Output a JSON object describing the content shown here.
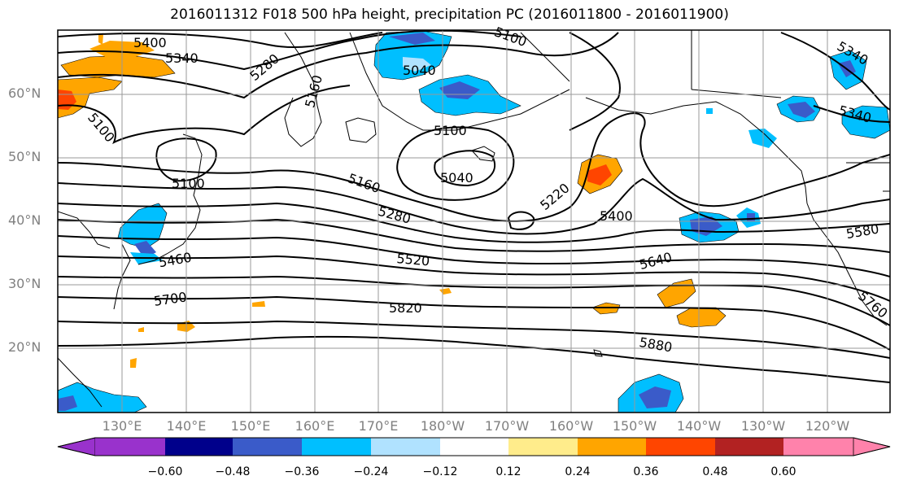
{
  "title": "2016011312 F018 500 hPa height, precipitation PC (2016011800 - 2016011900)",
  "lat_labels": [
    "60°N",
    "50°N",
    "40°N",
    "30°N",
    "20°N"
  ],
  "lon_labels": [
    "130°E",
    "140°E",
    "150°E",
    "160°E",
    "170°E",
    "180°W",
    "170°W",
    "160°W",
    "150°W",
    "140°W",
    "130°W",
    "120°W"
  ],
  "contour_labels": [
    "5400",
    "5340",
    "5280",
    "5100",
    "5160",
    "5040",
    "5100",
    "5340",
    "5100",
    "5100",
    "5040",
    "5160",
    "5220",
    "5280",
    "5400",
    "5580",
    "5460",
    "5520",
    "5640",
    "5700",
    "5820",
    "5760",
    "5880"
  ],
  "colorbar": {
    "ticks": [
      "−0.60",
      "−0.48",
      "−0.36",
      "−0.24",
      "−0.12",
      "0.12",
      "0.24",
      "0.36",
      "0.48",
      "0.60"
    ],
    "colors": [
      "#9932cc",
      "#00008b",
      "#3a5bc9",
      "#00bfff",
      "#b0e2ff",
      "#ffffff",
      "#ffec8b",
      "#ffa500",
      "#ff4500",
      "#b22222",
      "#ff82ab"
    ]
  }
}
